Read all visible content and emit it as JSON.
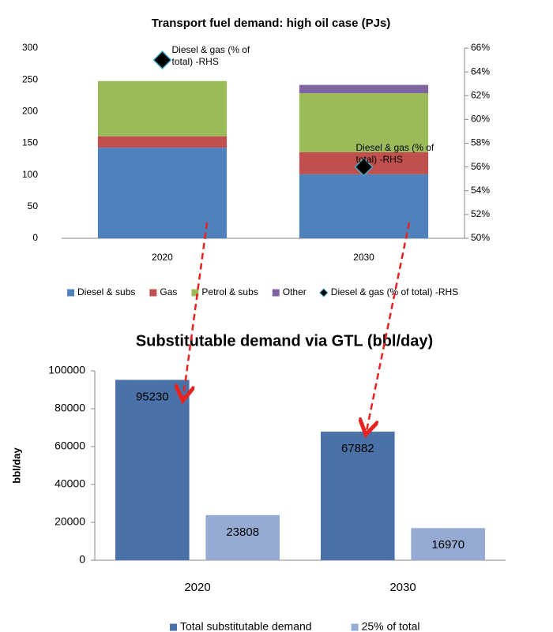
{
  "chart_data": [
    {
      "type": "bar",
      "stacked": true,
      "title": "Transport  fuel demand: high oil case (PJs)",
      "categories": [
        "2020",
        "2030"
      ],
      "series": [
        {
          "name": "Diesel & subs",
          "color": "#4f81bd",
          "values": [
            143,
            101
          ]
        },
        {
          "name": "Gas",
          "color": "#c0504d",
          "values": [
            18,
            35
          ]
        },
        {
          "name": "Petrol & subs",
          "color": "#9bbb59",
          "values": [
            87,
            93
          ]
        },
        {
          "name": "Other",
          "color": "#8064a2",
          "values": [
            0,
            13
          ]
        },
        {
          "name": "Diesel & gas (% of total) -RHS",
          "color": "#000000",
          "type": "scatter",
          "marker": "diamond",
          "axis": "y2",
          "values": [
            65,
            56
          ]
        }
      ],
      "annotations": [
        "Diesel & gas (% of total) -RHS",
        "Diesel & gas (% of total) -RHS"
      ],
      "ylim": [
        0,
        300
      ],
      "yticks": [
        0,
        50,
        100,
        150,
        200,
        250,
        300
      ],
      "y2lim": [
        50,
        66
      ],
      "y2ticks": [
        {
          "value": 50,
          "label": "50%"
        },
        {
          "value": 52,
          "label": "52%"
        },
        {
          "value": 54,
          "label": "54%"
        },
        {
          "value": 56,
          "label": "56%"
        },
        {
          "value": 58,
          "label": "58%"
        },
        {
          "value": 60,
          "label": "60%"
        },
        {
          "value": 62,
          "label": "62%"
        },
        {
          "value": 64,
          "label": "64%"
        },
        {
          "value": 66,
          "label": "66%"
        }
      ],
      "grid": false,
      "legend": "bottom"
    },
    {
      "type": "bar",
      "stacked": false,
      "title": "Substitutable demand via GTL (bbl/day)",
      "y_label": "bbl/day",
      "categories": [
        "2020",
        "2030"
      ],
      "series": [
        {
          "name": "Total substitutable  demand",
          "color": "#4a72a8",
          "values": [
            95230,
            67882
          ]
        },
        {
          "name": "25% of total",
          "color": "#95abd3",
          "values": [
            23808,
            16970
          ]
        }
      ],
      "ylim": [
        0,
        100000
      ],
      "yticks": [
        0,
        20000,
        40000,
        60000,
        80000,
        100000
      ],
      "grid": false,
      "legend": "bottom"
    }
  ]
}
